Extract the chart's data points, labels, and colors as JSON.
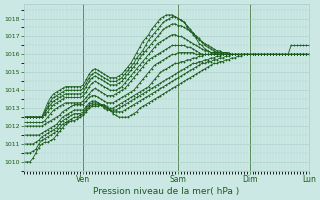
{
  "xlabel": "Pression niveau de la mer( hPa )",
  "bg_color": "#cce8e4",
  "grid_color": "#a8ccc8",
  "line_color": "#1a5c1a",
  "tick_color": "#1a5c1a",
  "label_color": "#1a5c1a",
  "ylim": [
    1009.5,
    1018.8
  ],
  "yticks": [
    1010,
    1011,
    1012,
    1013,
    1014,
    1015,
    1016,
    1017,
    1018
  ],
  "day_ticks": [
    20,
    52,
    76,
    96
  ],
  "day_labels": [
    "Ven",
    "Sam",
    "Dim",
    "Lun"
  ],
  "n_points": 97,
  "series": [
    [
      1010.0,
      1010.0,
      1010.0,
      1010.2,
      1010.5,
      1010.8,
      1011.0,
      1011.1,
      1011.1,
      1011.2,
      1011.3,
      1011.5,
      1011.7,
      1011.9,
      1012.1,
      1012.2,
      1012.3,
      1012.3,
      1012.4,
      1012.5,
      1012.6,
      1012.8,
      1013.0,
      1013.1,
      1013.1,
      1013.1,
      1013.2,
      1013.2,
      1013.1,
      1012.9,
      1012.7,
      1012.6,
      1012.5,
      1012.5,
      1012.5,
      1012.5,
      1012.6,
      1012.7,
      1012.8,
      1013.0,
      1013.1,
      1013.2,
      1013.3,
      1013.4,
      1013.5,
      1013.6,
      1013.7,
      1013.8,
      1013.9,
      1014.0,
      1014.1,
      1014.2,
      1014.3,
      1014.4,
      1014.5,
      1014.6,
      1014.7,
      1014.8,
      1014.9,
      1015.0,
      1015.1,
      1015.2,
      1015.3,
      1015.4,
      1015.5,
      1015.5,
      1015.6,
      1015.6,
      1015.7,
      1015.7,
      1015.8,
      1015.8,
      1015.9,
      1015.9,
      1016.0,
      1016.0,
      1016.0,
      1016.0,
      1016.0,
      1016.0,
      1016.0,
      1016.0,
      1016.0,
      1016.0,
      1016.0,
      1016.0,
      1016.0,
      1016.0,
      1016.0,
      1016.0,
      1016.0,
      1016.0,
      1016.0,
      1016.0,
      1016.0,
      1016.0,
      1016.0
    ],
    [
      1010.5,
      1010.5,
      1010.5,
      1010.6,
      1010.7,
      1011.0,
      1011.2,
      1011.3,
      1011.4,
      1011.5,
      1011.6,
      1011.7,
      1011.9,
      1012.1,
      1012.2,
      1012.3,
      1012.4,
      1012.5,
      1012.5,
      1012.6,
      1012.7,
      1012.9,
      1013.1,
      1013.2,
      1013.2,
      1013.2,
      1013.2,
      1013.1,
      1013.0,
      1012.9,
      1012.8,
      1012.8,
      1012.8,
      1012.8,
      1012.9,
      1013.0,
      1013.1,
      1013.2,
      1013.3,
      1013.4,
      1013.5,
      1013.6,
      1013.7,
      1013.8,
      1013.9,
      1014.0,
      1014.1,
      1014.2,
      1014.3,
      1014.4,
      1014.5,
      1014.6,
      1014.7,
      1014.8,
      1014.9,
      1015.0,
      1015.1,
      1015.2,
      1015.3,
      1015.4,
      1015.5,
      1015.5,
      1015.6,
      1015.6,
      1015.7,
      1015.7,
      1015.8,
      1015.8,
      1015.9,
      1015.9,
      1016.0,
      1016.0,
      1016.0,
      1016.0,
      1016.0,
      1016.0,
      1016.0,
      1016.0,
      1016.0,
      1016.0,
      1016.0,
      1016.0,
      1016.0,
      1016.0,
      1016.0,
      1016.0,
      1016.0,
      1016.0,
      1016.0,
      1016.0,
      1016.0,
      1016.0,
      1016.0,
      1016.0,
      1016.0,
      1016.0,
      1016.0
    ],
    [
      1011.0,
      1011.0,
      1011.0,
      1011.0,
      1011.1,
      1011.2,
      1011.4,
      1011.5,
      1011.6,
      1011.7,
      1011.8,
      1011.9,
      1012.1,
      1012.3,
      1012.4,
      1012.5,
      1012.6,
      1012.7,
      1012.7,
      1012.7,
      1012.8,
      1013.0,
      1013.2,
      1013.3,
      1013.3,
      1013.3,
      1013.2,
      1013.0,
      1012.9,
      1012.9,
      1012.9,
      1012.9,
      1013.0,
      1013.1,
      1013.2,
      1013.3,
      1013.4,
      1013.5,
      1013.6,
      1013.7,
      1013.8,
      1013.9,
      1014.0,
      1014.1,
      1014.2,
      1014.3,
      1014.4,
      1014.5,
      1014.6,
      1014.7,
      1014.8,
      1014.9,
      1015.0,
      1015.1,
      1015.2,
      1015.3,
      1015.4,
      1015.5,
      1015.5,
      1015.6,
      1015.6,
      1015.7,
      1015.7,
      1015.8,
      1015.8,
      1015.9,
      1015.9,
      1016.0,
      1016.0,
      1016.0,
      1016.0,
      1016.0,
      1016.0,
      1016.0,
      1016.0,
      1016.0,
      1016.0,
      1016.0,
      1016.0,
      1016.0,
      1016.0,
      1016.0,
      1016.0,
      1016.0,
      1016.0,
      1016.0,
      1016.0,
      1016.0,
      1016.0,
      1016.0,
      1016.0,
      1016.0,
      1016.0,
      1016.0,
      1016.0,
      1016.0,
      1016.0
    ],
    [
      1011.5,
      1011.5,
      1011.5,
      1011.5,
      1011.5,
      1011.5,
      1011.6,
      1011.7,
      1011.8,
      1011.9,
      1012.0,
      1012.1,
      1012.3,
      1012.5,
      1012.6,
      1012.7,
      1012.8,
      1012.9,
      1012.9,
      1012.9,
      1012.9,
      1013.1,
      1013.3,
      1013.4,
      1013.4,
      1013.3,
      1013.2,
      1013.1,
      1013.0,
      1013.0,
      1013.0,
      1013.1,
      1013.2,
      1013.3,
      1013.4,
      1013.5,
      1013.6,
      1013.7,
      1013.8,
      1013.9,
      1014.0,
      1014.1,
      1014.2,
      1014.4,
      1014.6,
      1014.8,
      1015.0,
      1015.1,
      1015.2,
      1015.3,
      1015.4,
      1015.5,
      1015.5,
      1015.6,
      1015.6,
      1015.7,
      1015.7,
      1015.8,
      1015.8,
      1015.9,
      1015.9,
      1016.0,
      1016.0,
      1016.0,
      1016.0,
      1016.0,
      1016.0,
      1016.0,
      1016.0,
      1016.0,
      1016.0,
      1016.0,
      1016.0,
      1016.0,
      1016.0,
      1016.0,
      1016.0,
      1016.0,
      1016.0,
      1016.0,
      1016.0,
      1016.0,
      1016.0,
      1016.0,
      1016.0,
      1016.0,
      1016.0,
      1016.0,
      1016.0,
      1016.0,
      1016.0,
      1016.0,
      1016.0,
      1016.0,
      1016.0,
      1016.0,
      1016.0
    ],
    [
      1012.0,
      1012.0,
      1012.0,
      1012.0,
      1012.0,
      1012.0,
      1012.0,
      1012.1,
      1012.2,
      1012.3,
      1012.4,
      1012.5,
      1012.6,
      1012.8,
      1012.9,
      1013.0,
      1013.1,
      1013.2,
      1013.2,
      1013.2,
      1013.2,
      1013.4,
      1013.6,
      1013.7,
      1013.7,
      1013.6,
      1013.5,
      1013.4,
      1013.3,
      1013.3,
      1013.3,
      1013.4,
      1013.5,
      1013.6,
      1013.7,
      1013.8,
      1013.9,
      1014.0,
      1014.2,
      1014.4,
      1014.6,
      1014.8,
      1015.0,
      1015.2,
      1015.4,
      1015.5,
      1015.6,
      1015.7,
      1015.8,
      1015.9,
      1016.0,
      1016.0,
      1016.1,
      1016.1,
      1016.1,
      1016.1,
      1016.1,
      1016.1,
      1016.0,
      1016.0,
      1016.0,
      1016.0,
      1016.0,
      1016.0,
      1016.0,
      1016.0,
      1016.0,
      1016.0,
      1016.0,
      1016.0,
      1016.0,
      1016.0,
      1016.0,
      1016.0,
      1016.0,
      1016.0,
      1016.0,
      1016.0,
      1016.0,
      1016.0,
      1016.0,
      1016.0,
      1016.0,
      1016.0,
      1016.0,
      1016.0,
      1016.0,
      1016.0,
      1016.0,
      1016.0,
      1016.0,
      1016.0,
      1016.0,
      1016.0,
      1016.0,
      1016.0,
      1016.0
    ],
    [
      1012.2,
      1012.2,
      1012.2,
      1012.2,
      1012.2,
      1012.2,
      1012.2,
      1012.3,
      1012.5,
      1012.7,
      1012.9,
      1013.0,
      1013.1,
      1013.2,
      1013.3,
      1013.3,
      1013.3,
      1013.3,
      1013.3,
      1013.3,
      1013.4,
      1013.6,
      1013.8,
      1014.0,
      1014.1,
      1014.0,
      1013.9,
      1013.8,
      1013.7,
      1013.7,
      1013.7,
      1013.8,
      1013.9,
      1014.0,
      1014.1,
      1014.3,
      1014.5,
      1014.7,
      1014.9,
      1015.1,
      1015.3,
      1015.5,
      1015.7,
      1015.8,
      1015.9,
      1016.0,
      1016.1,
      1016.2,
      1016.3,
      1016.4,
      1016.5,
      1016.5,
      1016.5,
      1016.5,
      1016.5,
      1016.4,
      1016.4,
      1016.3,
      1016.2,
      1016.1,
      1016.0,
      1016.0,
      1016.0,
      1016.0,
      1016.0,
      1016.0,
      1016.0,
      1016.0,
      1016.0,
      1016.0,
      1016.0,
      1016.0,
      1016.0,
      1016.0,
      1016.0,
      1016.0,
      1016.0,
      1016.0,
      1016.0,
      1016.0,
      1016.0,
      1016.0,
      1016.0,
      1016.0,
      1016.0,
      1016.0,
      1016.0,
      1016.0,
      1016.0,
      1016.0,
      1016.0,
      1016.0,
      1016.0,
      1016.0,
      1016.0,
      1016.0,
      1016.0
    ],
    [
      1012.5,
      1012.5,
      1012.5,
      1012.5,
      1012.5,
      1012.5,
      1012.5,
      1012.6,
      1012.8,
      1013.0,
      1013.2,
      1013.3,
      1013.4,
      1013.5,
      1013.6,
      1013.6,
      1013.6,
      1013.6,
      1013.6,
      1013.6,
      1013.7,
      1013.9,
      1014.2,
      1014.4,
      1014.5,
      1014.4,
      1014.3,
      1014.2,
      1014.1,
      1014.0,
      1014.0,
      1014.0,
      1014.1,
      1014.2,
      1014.4,
      1014.6,
      1014.8,
      1015.0,
      1015.2,
      1015.4,
      1015.6,
      1015.8,
      1016.0,
      1016.2,
      1016.4,
      1016.6,
      1016.7,
      1016.8,
      1016.9,
      1017.0,
      1017.1,
      1017.1,
      1017.0,
      1017.0,
      1016.9,
      1016.8,
      1016.7,
      1016.6,
      1016.5,
      1016.4,
      1016.3,
      1016.2,
      1016.2,
      1016.1,
      1016.1,
      1016.1,
      1016.1,
      1016.1,
      1016.1,
      1016.0,
      1016.0,
      1016.0,
      1016.0,
      1016.0,
      1016.0,
      1016.0,
      1016.0,
      1016.0,
      1016.0,
      1016.0,
      1016.0,
      1016.0,
      1016.0,
      1016.0,
      1016.0,
      1016.0,
      1016.0,
      1016.0,
      1016.0,
      1016.0,
      1016.0,
      1016.0,
      1016.0,
      1016.0,
      1016.0,
      1016.0,
      1016.0
    ],
    [
      1012.5,
      1012.5,
      1012.5,
      1012.5,
      1012.5,
      1012.5,
      1012.5,
      1012.7,
      1013.0,
      1013.2,
      1013.4,
      1013.5,
      1013.6,
      1013.7,
      1013.8,
      1013.8,
      1013.8,
      1013.8,
      1013.8,
      1013.8,
      1013.9,
      1014.2,
      1014.5,
      1014.7,
      1014.8,
      1014.7,
      1014.6,
      1014.5,
      1014.4,
      1014.3,
      1014.3,
      1014.3,
      1014.4,
      1014.5,
      1014.7,
      1014.9,
      1015.1,
      1015.3,
      1015.5,
      1015.8,
      1016.0,
      1016.2,
      1016.4,
      1016.6,
      1016.8,
      1017.0,
      1017.2,
      1017.4,
      1017.5,
      1017.6,
      1017.7,
      1017.7,
      1017.6,
      1017.6,
      1017.5,
      1017.4,
      1017.3,
      1017.2,
      1017.0,
      1016.9,
      1016.7,
      1016.6,
      1016.5,
      1016.4,
      1016.3,
      1016.2,
      1016.2,
      1016.1,
      1016.1,
      1016.1,
      1016.0,
      1016.0,
      1016.0,
      1016.0,
      1016.0,
      1016.0,
      1016.0,
      1016.0,
      1016.0,
      1016.0,
      1016.0,
      1016.0,
      1016.0,
      1016.0,
      1016.0,
      1016.0,
      1016.0,
      1016.0,
      1016.0,
      1016.0,
      1016.0,
      1016.0,
      1016.0,
      1016.0,
      1016.0,
      1016.0,
      1016.0
    ],
    [
      1012.5,
      1012.5,
      1012.5,
      1012.5,
      1012.5,
      1012.5,
      1012.5,
      1012.8,
      1013.1,
      1013.4,
      1013.6,
      1013.7,
      1013.8,
      1013.9,
      1014.0,
      1014.0,
      1014.0,
      1014.0,
      1014.0,
      1014.0,
      1014.1,
      1014.4,
      1014.7,
      1014.9,
      1015.0,
      1014.9,
      1014.8,
      1014.7,
      1014.6,
      1014.5,
      1014.5,
      1014.5,
      1014.6,
      1014.7,
      1014.9,
      1015.1,
      1015.3,
      1015.5,
      1015.8,
      1016.0,
      1016.2,
      1016.5,
      1016.8,
      1017.0,
      1017.2,
      1017.4,
      1017.6,
      1017.8,
      1017.9,
      1018.0,
      1018.1,
      1018.1,
      1018.0,
      1017.9,
      1017.8,
      1017.6,
      1017.4,
      1017.2,
      1017.0,
      1016.8,
      1016.7,
      1016.5,
      1016.4,
      1016.3,
      1016.2,
      1016.1,
      1016.1,
      1016.0,
      1016.0,
      1016.0,
      1016.0,
      1016.0,
      1016.0,
      1016.0,
      1016.0,
      1016.0,
      1016.0,
      1016.0,
      1016.0,
      1016.0,
      1016.0,
      1016.0,
      1016.0,
      1016.0,
      1016.0,
      1016.0,
      1016.0,
      1016.0,
      1016.0,
      1016.0,
      1016.0,
      1016.0,
      1016.0,
      1016.0,
      1016.0,
      1016.0,
      1016.0
    ],
    [
      1012.5,
      1012.5,
      1012.5,
      1012.5,
      1012.5,
      1012.5,
      1012.5,
      1012.9,
      1013.3,
      1013.6,
      1013.8,
      1013.9,
      1014.0,
      1014.1,
      1014.2,
      1014.2,
      1014.2,
      1014.2,
      1014.2,
      1014.2,
      1014.3,
      1014.6,
      1014.9,
      1015.1,
      1015.2,
      1015.1,
      1015.0,
      1014.9,
      1014.8,
      1014.7,
      1014.7,
      1014.7,
      1014.8,
      1014.9,
      1015.1,
      1015.3,
      1015.5,
      1015.8,
      1016.1,
      1016.4,
      1016.7,
      1016.9,
      1017.1,
      1017.4,
      1017.6,
      1017.8,
      1018.0,
      1018.1,
      1018.2,
      1018.2,
      1018.2,
      1018.1,
      1018.0,
      1017.9,
      1017.8,
      1017.5,
      1017.3,
      1017.1,
      1016.9,
      1016.6,
      1016.5,
      1016.3,
      1016.2,
      1016.1,
      1016.1,
      1016.0,
      1016.0,
      1016.0,
      1016.0,
      1016.0,
      1016.0,
      1016.0,
      1016.0,
      1016.0,
      1016.0,
      1016.0,
      1016.0,
      1016.0,
      1016.0,
      1016.0,
      1016.0,
      1016.0,
      1016.0,
      1016.0,
      1016.0,
      1016.0,
      1016.0,
      1016.0,
      1016.0,
      1016.0,
      1016.5,
      1016.5,
      1016.5,
      1016.5,
      1016.5,
      1016.5,
      1016.5
    ]
  ]
}
